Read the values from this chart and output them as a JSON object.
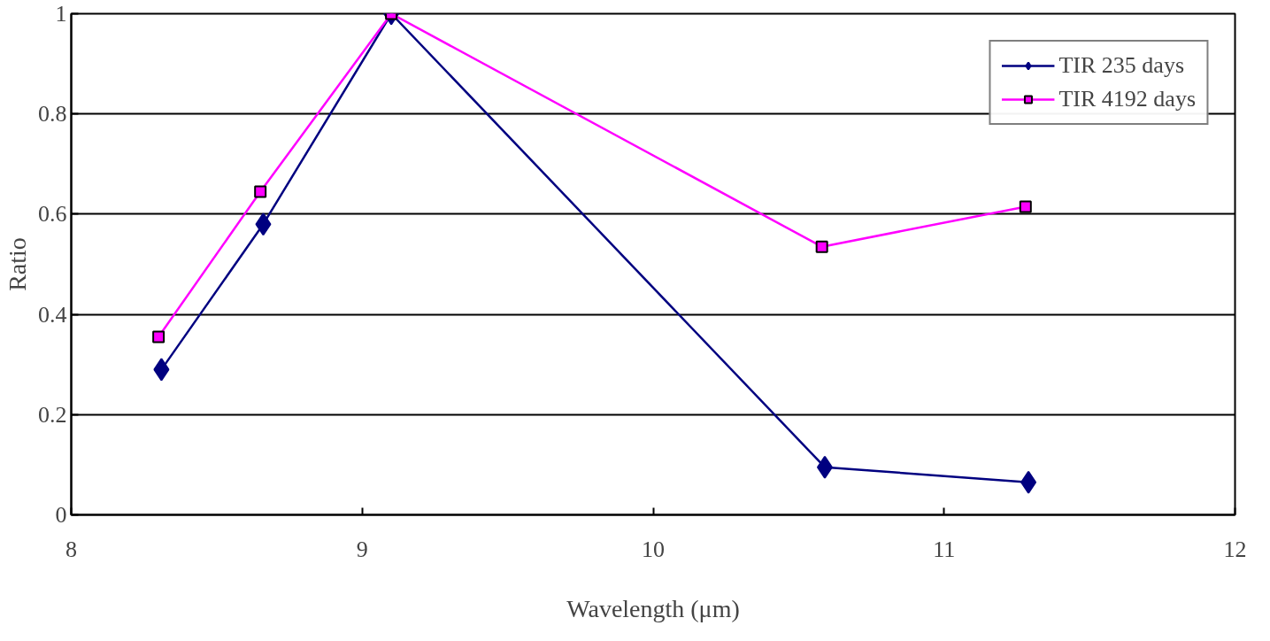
{
  "chart_data": {
    "type": "line",
    "xlabel": "Wavelength (μm)",
    "ylabel": "Ratio",
    "xlim": [
      8,
      12
    ],
    "xticks": [
      8,
      9,
      10,
      11,
      12
    ],
    "ylim": [
      0,
      1
    ],
    "yticks": [
      0,
      0.2,
      0.4,
      0.6,
      0.8,
      1
    ],
    "grid": "y",
    "legend": "top right",
    "series": [
      {
        "name": "TIR 235 days",
        "color": "#000080",
        "marker": "diamond",
        "x": [
          8.31,
          8.66,
          9.1,
          10.59,
          11.29
        ],
        "values": [
          0.29,
          0.58,
          1.0,
          0.095,
          0.065
        ]
      },
      {
        "name": "TIR 4192 days",
        "color": "#ff00ff",
        "marker": "square",
        "x": [
          8.3,
          8.65,
          9.1,
          10.58,
          11.28
        ],
        "values": [
          0.355,
          0.645,
          1.0,
          0.535,
          0.615
        ]
      }
    ]
  }
}
